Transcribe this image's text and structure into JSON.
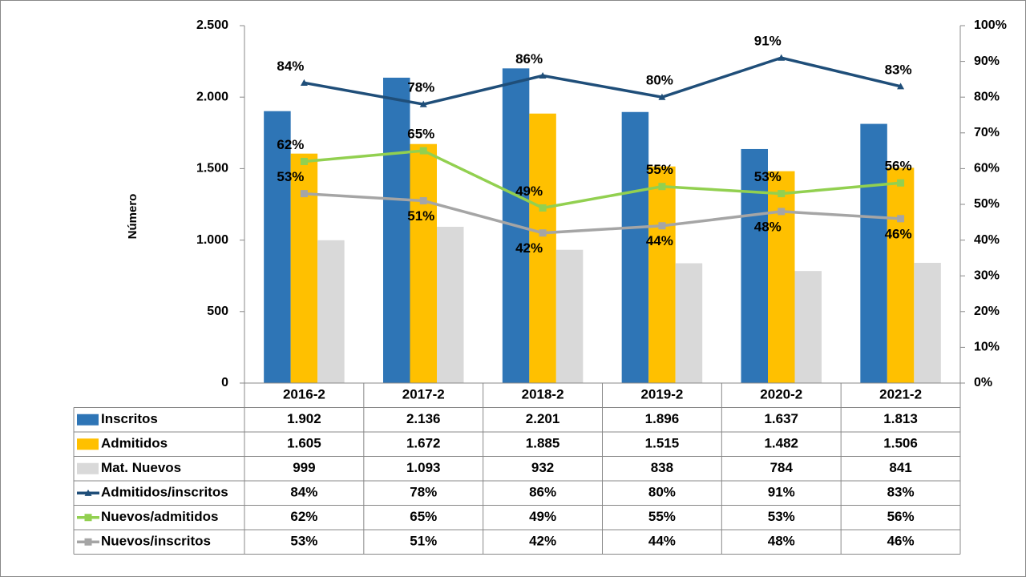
{
  "chart_data": {
    "type": "bar_line_table",
    "y_label": "Número",
    "categories": [
      "2016-2",
      "2017-2",
      "2018-2",
      "2019-2",
      "2020-2",
      "2021-2"
    ],
    "ylim": [
      0,
      2500
    ],
    "yticks": [
      0,
      500,
      {
        "value": 1000,
        "label": "1.000"
      },
      {
        "value": 1500,
        "label": "1.500"
      },
      {
        "value": 2000,
        "label": "2.000"
      },
      {
        "value": 2500,
        "label": "2.500"
      }
    ],
    "y2lim": [
      0,
      100
    ],
    "y2ticks": [
      {
        "value": 0,
        "label": "0%"
      },
      {
        "value": 10,
        "label": "10%"
      },
      {
        "value": 20,
        "label": "20%"
      },
      {
        "value": 30,
        "label": "30%"
      },
      {
        "value": 40,
        "label": "40%"
      },
      {
        "value": 50,
        "label": "50%"
      },
      {
        "value": 60,
        "label": "60%"
      },
      {
        "value": 70,
        "label": "70%"
      },
      {
        "value": 80,
        "label": "80%"
      },
      {
        "value": 90,
        "label": "90%"
      },
      {
        "value": 100,
        "label": "100%"
      }
    ],
    "series": [
      {
        "name": "Inscritos",
        "type": "bar",
        "color": "#2e75b6",
        "values": [
          1902,
          2136,
          2201,
          1896,
          1637,
          1813
        ],
        "value_labels": [
          "1.902",
          "2.136",
          "2.201",
          "1.896",
          "1.637",
          "1.813"
        ]
      },
      {
        "name": "Admitidos",
        "type": "bar",
        "color": "#ffc000",
        "values": [
          1605,
          1672,
          1885,
          1515,
          1482,
          1506
        ],
        "value_labels": [
          "1.605",
          "1.672",
          "1.885",
          "1.515",
          "1.482",
          "1.506"
        ]
      },
      {
        "name": "Mat. Nuevos",
        "type": "bar",
        "color": "#d9d9d9",
        "values": [
          999,
          1093,
          932,
          838,
          784,
          841
        ],
        "value_labels": [
          "999",
          "1.093",
          "932",
          "838",
          "784",
          "841"
        ]
      },
      {
        "name": "Admitidos/inscritos",
        "type": "line",
        "axis": "y2",
        "marker": "triangle",
        "color": "#1f4e79",
        "values": [
          84,
          78,
          86,
          80,
          91,
          83
        ],
        "value_labels": [
          "84%",
          "78%",
          "86%",
          "80%",
          "91%",
          "83%"
        ]
      },
      {
        "name": "Nuevos/admitidos",
        "type": "line",
        "axis": "y2",
        "marker": "square",
        "color": "#92d050",
        "values": [
          62,
          65,
          49,
          55,
          53,
          56
        ],
        "value_labels": [
          "62%",
          "65%",
          "49%",
          "55%",
          "53%",
          "56%"
        ]
      },
      {
        "name": "Nuevos/inscritos",
        "type": "line",
        "axis": "y2",
        "marker": "square",
        "color": "#a5a5a5",
        "values": [
          53,
          51,
          42,
          44,
          48,
          46
        ],
        "value_labels": [
          "53%",
          "51%",
          "42%",
          "44%",
          "48%",
          "46%"
        ]
      }
    ]
  }
}
